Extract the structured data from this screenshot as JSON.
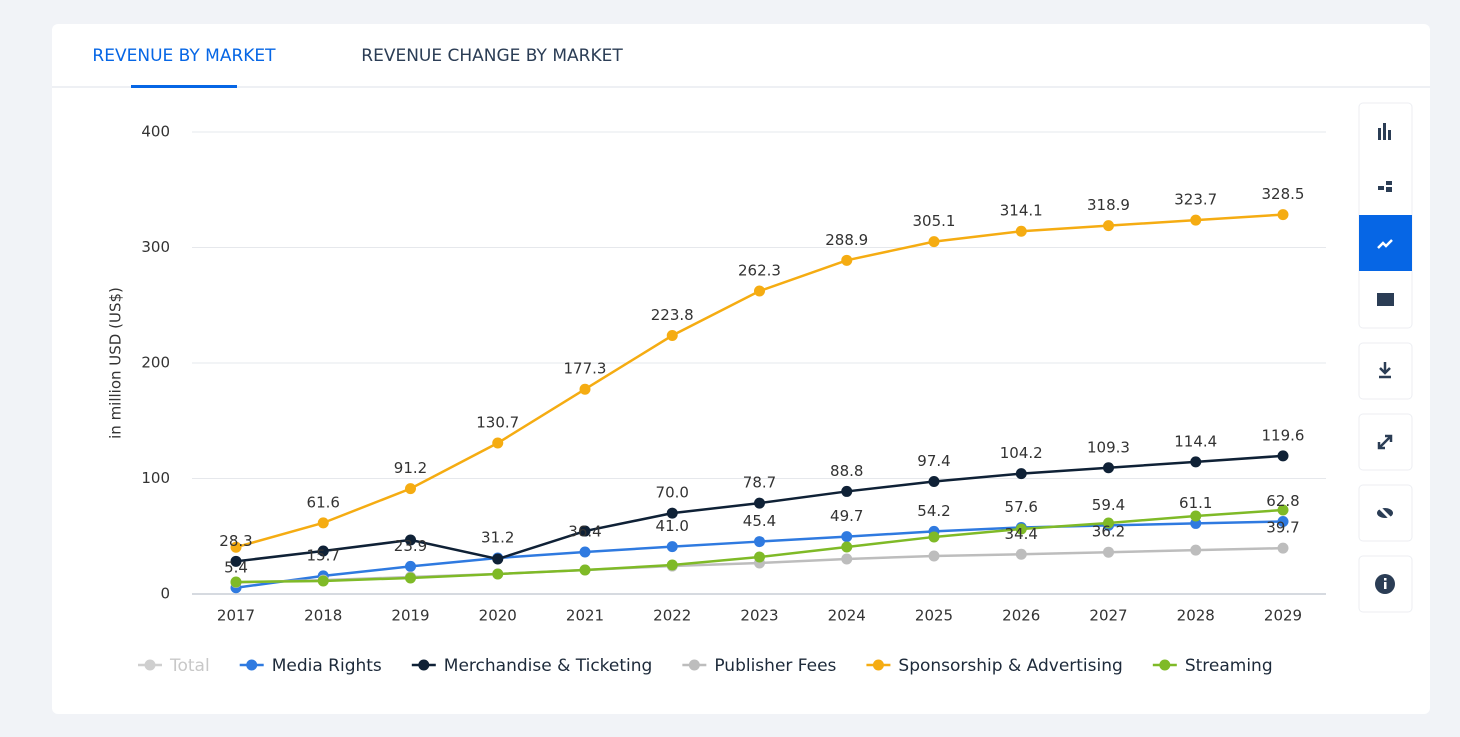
{
  "tabs": [
    "REVENUE BY MARKET",
    "REVENUE CHANGE BY MARKET"
  ],
  "chart_data": {
    "type": "line",
    "y_label": "in million USD (US$)",
    "categories": [
      "2017",
      "2018",
      "2019",
      "2020",
      "2021",
      "2022",
      "2023",
      "2024",
      "2025",
      "2026",
      "2027",
      "2028",
      "2029"
    ],
    "ylim": [
      0,
      400
    ],
    "yticks": [
      0,
      100,
      200,
      300,
      400
    ],
    "grid": true,
    "series": [
      {
        "name": "Total",
        "color": "#c8c8c8",
        "visible": false
      },
      {
        "name": "Media Rights",
        "color": "#2f7ae0",
        "visible": true,
        "values": [
          5.4,
          15.7,
          23.9,
          31.2,
          36.4,
          41.0,
          45.4,
          49.7,
          54.2,
          57.6,
          59.4,
          61.1,
          62.8
        ],
        "value_labels": [
          "5.4",
          "15.7",
          "23.9",
          "31.2",
          "36.4",
          "41.0",
          "45.4",
          "49.7",
          "54.2",
          "57.6",
          "59.4",
          "61.1",
          "62.8"
        ]
      },
      {
        "name": "Merchandise & Ticketing",
        "color": "#0f2136",
        "visible": true,
        "values": [
          28.3,
          37.2,
          46.8,
          30.3,
          54.5,
          70.0,
          78.7,
          88.8,
          97.4,
          104.2,
          109.3,
          114.4,
          119.6
        ],
        "value_labels": [
          "28.3",
          null,
          null,
          null,
          null,
          "70.0",
          "78.7",
          "88.8",
          "97.4",
          "104.2",
          "109.3",
          "114.4",
          "119.6"
        ]
      },
      {
        "name": "Publisher Fees",
        "color": "#bdbdbd",
        "visible": true,
        "values": [
          10.0,
          12.0,
          14.7,
          17.3,
          20.8,
          24.2,
          26.8,
          30.3,
          32.9,
          34.4,
          36.2,
          38.0,
          39.7
        ],
        "value_labels": [
          null,
          null,
          null,
          null,
          null,
          null,
          null,
          null,
          null,
          "34.4",
          "36.2",
          null,
          "39.7"
        ]
      },
      {
        "name": "Sponsorship & Advertising",
        "color": "#f5ac12",
        "visible": true,
        "values": [
          40.5,
          61.6,
          91.2,
          130.7,
          177.3,
          223.8,
          262.3,
          288.9,
          305.1,
          314.1,
          318.9,
          323.7,
          328.5
        ],
        "value_labels": [
          null,
          "61.6",
          "91.2",
          "130.7",
          "177.3",
          "223.8",
          "262.3",
          "288.9",
          "305.1",
          "314.1",
          "318.9",
          "323.7",
          "328.5"
        ]
      },
      {
        "name": "Streaming",
        "color": "#7fba27",
        "visible": true,
        "values": [
          10.4,
          11.3,
          13.9,
          17.3,
          20.8,
          25.1,
          32.0,
          40.7,
          49.4,
          56.3,
          61.5,
          67.5,
          72.7
        ]
      }
    ]
  }
}
